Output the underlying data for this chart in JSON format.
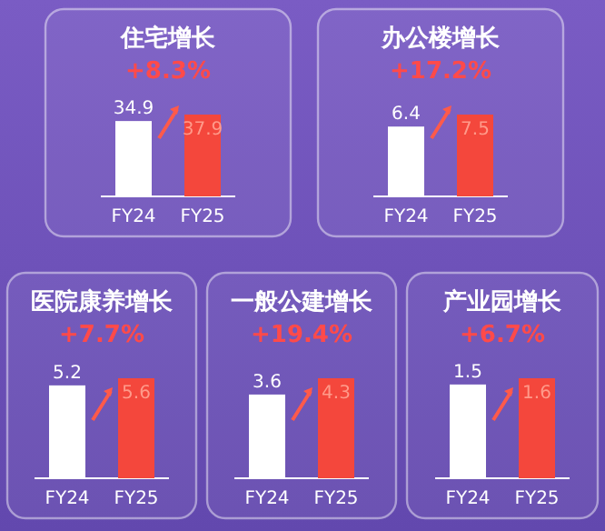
{
  "chart_data": [
    {
      "type": "bar",
      "title": "住宅增长",
      "subtitle": "+8.3%",
      "categories": [
        "FY24",
        "FY25"
      ],
      "values": [
        34.9,
        37.9
      ],
      "colors": [
        "#ffffff",
        "#f4473c"
      ],
      "data_labels": true
    },
    {
      "type": "bar",
      "title": "办公楼增长",
      "subtitle": "+17.2%",
      "categories": [
        "FY24",
        "FY25"
      ],
      "values": [
        6.4,
        7.5
      ],
      "colors": [
        "#ffffff",
        "#f4473c"
      ],
      "data_labels": true
    },
    {
      "type": "bar",
      "title": "医院康养增长",
      "subtitle": "+7.7%",
      "categories": [
        "FY24",
        "FY25"
      ],
      "values": [
        5.2,
        5.6
      ],
      "colors": [
        "#ffffff",
        "#f4473c"
      ],
      "data_labels": true
    },
    {
      "type": "bar",
      "title": "一般公建增长",
      "subtitle": "+19.4%",
      "categories": [
        "FY24",
        "FY25"
      ],
      "values": [
        3.6,
        4.3
      ],
      "colors": [
        "#ffffff",
        "#f4473c"
      ],
      "data_labels": true
    },
    {
      "type": "bar",
      "title": "产业园增长",
      "subtitle": "+6.7%",
      "categories": [
        "FY24",
        "FY25"
      ],
      "values": [
        1.5,
        1.6
      ],
      "colors": [
        "#ffffff",
        "#f4473c"
      ],
      "data_labels": true
    }
  ]
}
